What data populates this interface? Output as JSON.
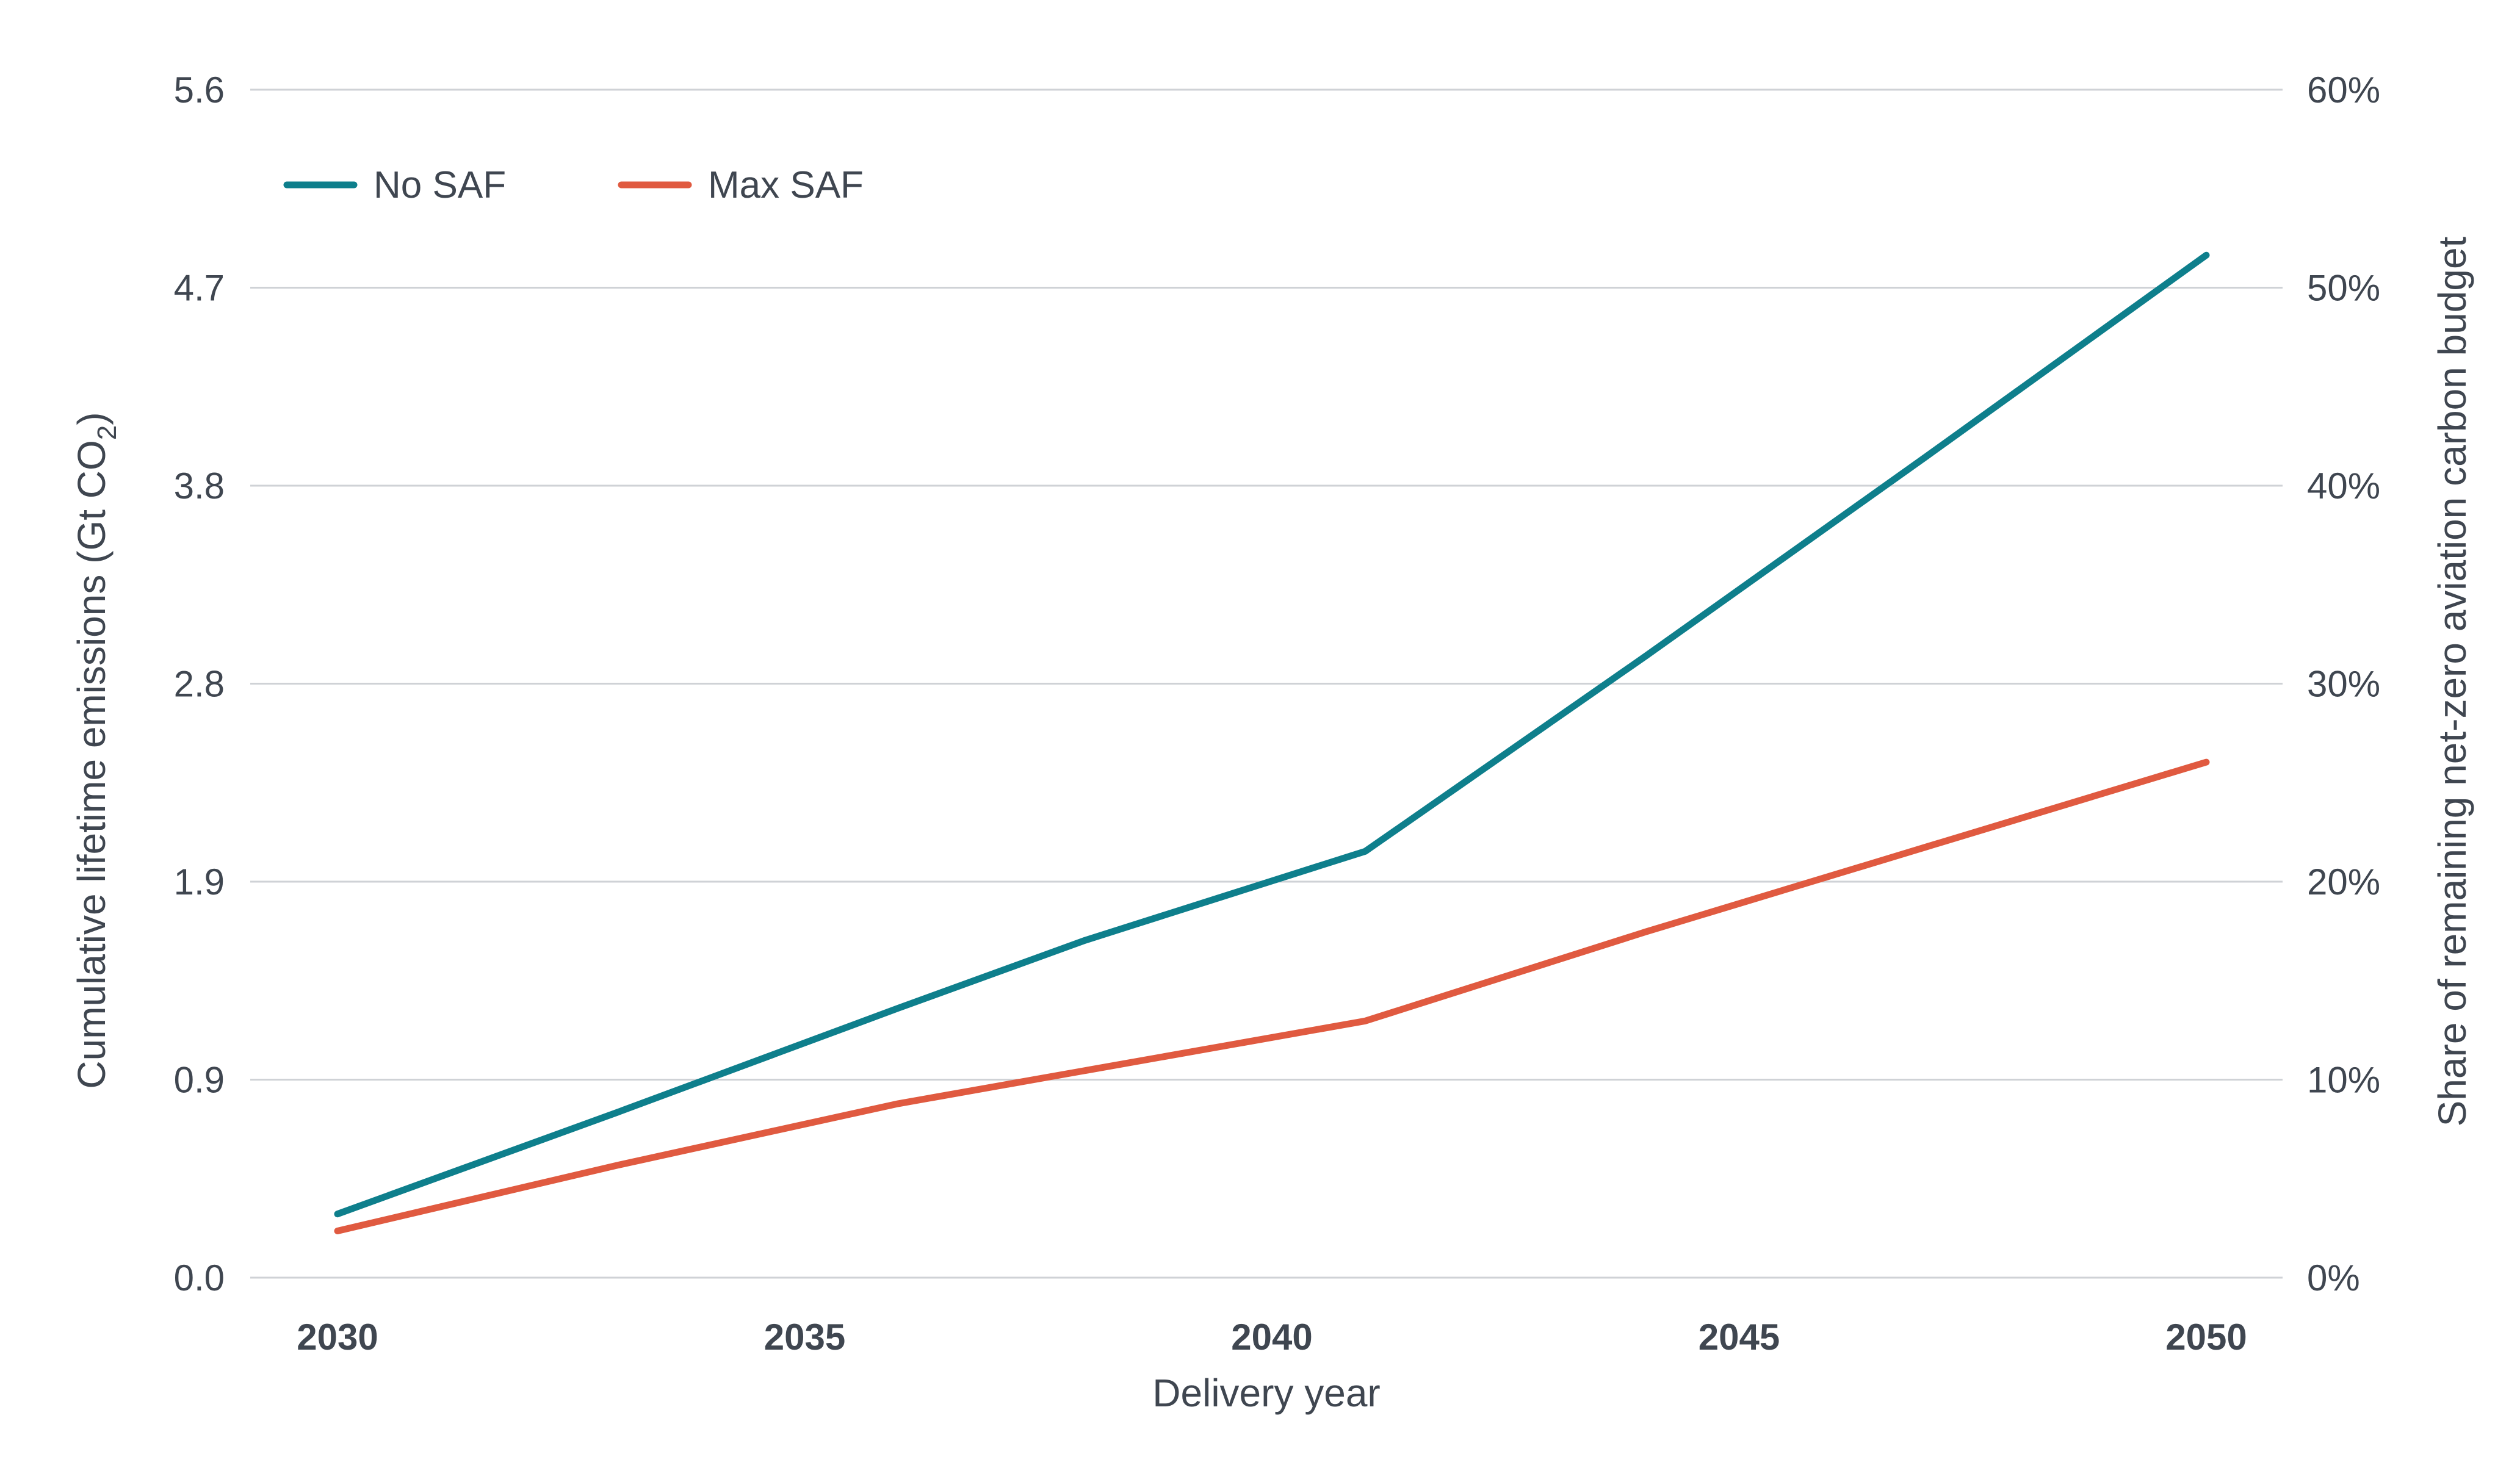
{
  "chart_data": {
    "type": "line",
    "xlabel": "Delivery year",
    "ylabel": "Cumulative lifetime emissions (Gt CO",
    "ylabel_subscript": "2",
    "ylabel_close": ")",
    "y2label": "Share of remaining net-zero aviation carbon budget",
    "x_ticks": [
      "2030",
      "2035",
      "2040",
      "2045",
      "2050"
    ],
    "xlim": [
      2030,
      2050
    ],
    "y_ticks": [
      "0.0",
      "0.9",
      "1.9",
      "2.8",
      "3.8",
      "4.7",
      "5.6"
    ],
    "ylim": [
      0,
      5.6
    ],
    "y2_ticks": [
      "0%",
      "10%",
      "20%",
      "30%",
      "40%",
      "50%",
      "60%"
    ],
    "y2lim": [
      0,
      60
    ],
    "grid": "horizontal",
    "legend_position": "top-left",
    "series": [
      {
        "name": "No SAF",
        "color": "#0e7f8c",
        "x": [
          2030,
          2033,
          2036,
          2038,
          2041,
          2044,
          2047,
          2050
        ],
        "y": [
          0.3,
          0.78,
          1.27,
          1.59,
          2.01,
          2.93,
          3.87,
          4.82
        ]
      },
      {
        "name": "Max SAF",
        "color": "#e05a40",
        "x": [
          2030,
          2033,
          2036,
          2041,
          2044,
          2047,
          2050
        ],
        "y": [
          0.22,
          0.53,
          0.82,
          1.21,
          1.63,
          2.03,
          2.43
        ]
      }
    ]
  }
}
